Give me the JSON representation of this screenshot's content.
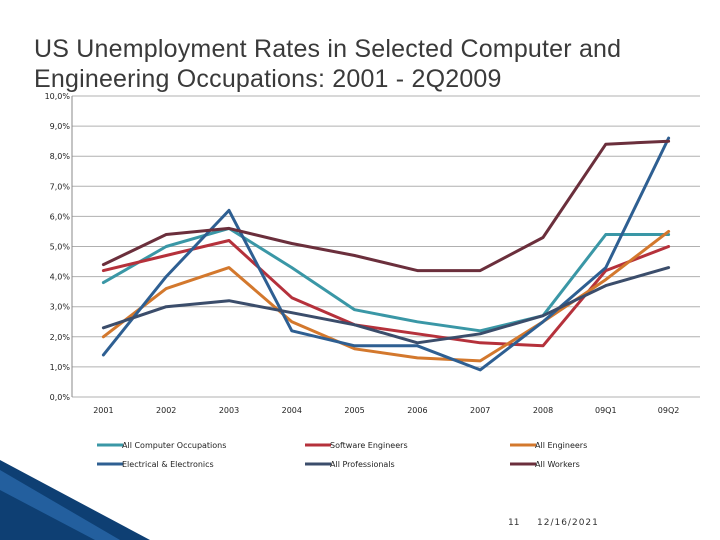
{
  "slide": {
    "title": "US Unemployment Rates in Selected Computer and Engineering Occupations: 2001 - 2Q2009",
    "page_number": "11",
    "date": "12/16/2021"
  },
  "chart_data": {
    "type": "line",
    "title": "",
    "xlabel": "",
    "ylabel": "",
    "x": [
      "2001",
      "2002",
      "2003",
      "2004",
      "2005",
      "2006",
      "2007",
      "2008",
      "09Q1",
      "09Q2"
    ],
    "ylim": [
      0,
      10
    ],
    "yticks": [
      0,
      1,
      2,
      3,
      4,
      5,
      6,
      7,
      8,
      9,
      10
    ],
    "ytick_labels": [
      "0,0%",
      "1,0%",
      "2,0%",
      "3,0%",
      "4,0%",
      "5,0%",
      "6,0%",
      "7,0%",
      "8,0%",
      "9,0%",
      "10,0%"
    ],
    "grid": true,
    "legend_position": "bottom",
    "series": [
      {
        "name": "All Computer Occupations",
        "color": "#3a97a6",
        "values": [
          3.8,
          5.0,
          5.6,
          4.3,
          2.9,
          2.5,
          2.2,
          2.7,
          5.4,
          5.4
        ]
      },
      {
        "name": "Software Engineers",
        "color": "#b5313b",
        "values": [
          4.2,
          4.7,
          5.2,
          3.3,
          2.4,
          2.1,
          1.8,
          1.7,
          4.2,
          5.0
        ]
      },
      {
        "name": "All Engineers",
        "color": "#d3782d",
        "values": [
          2.0,
          3.6,
          4.3,
          2.5,
          1.6,
          1.3,
          1.2,
          2.5,
          3.9,
          5.5
        ]
      },
      {
        "name": "Electrical & Electronics",
        "color": "#2e5f92",
        "values": [
          1.4,
          4.0,
          6.2,
          2.2,
          1.7,
          1.7,
          0.9,
          2.5,
          4.3,
          8.6
        ]
      },
      {
        "name": "All Professionals",
        "color": "#3b4d6b",
        "values": [
          2.3,
          3.0,
          3.2,
          2.8,
          2.4,
          1.8,
          2.1,
          2.7,
          3.7,
          4.3
        ]
      },
      {
        "name": "All Workers",
        "color": "#6b2f3c",
        "values": [
          4.4,
          5.4,
          5.6,
          5.1,
          4.7,
          4.2,
          4.2,
          5.3,
          8.4,
          8.5
        ]
      }
    ]
  }
}
